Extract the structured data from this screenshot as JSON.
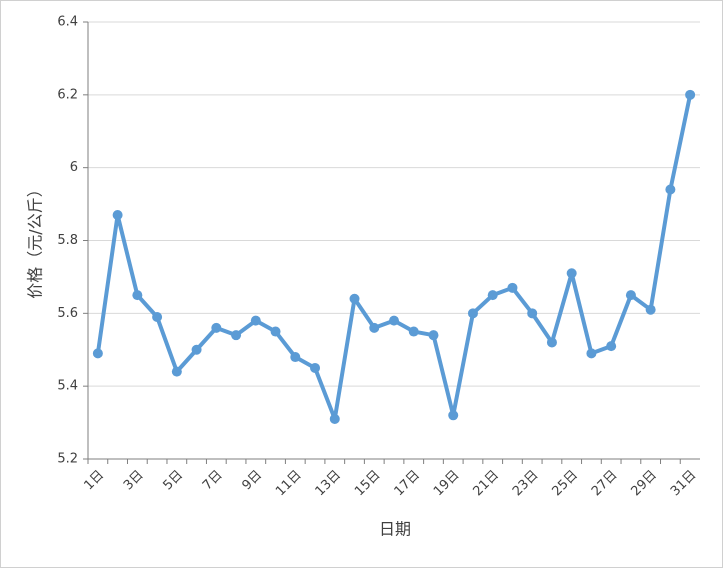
{
  "chart_data": {
    "type": "line",
    "x_label": "日期",
    "y_label": "价格（元/公斤）",
    "categories": [
      "1日",
      null,
      "3日",
      null,
      "5日",
      null,
      "7日",
      null,
      "9日",
      null,
      "11日",
      null,
      "13日",
      null,
      "15日",
      null,
      "17日",
      null,
      "19日",
      null,
      "21日",
      null,
      "23日",
      null,
      "25日",
      null,
      "27日",
      null,
      "29日",
      null,
      "31日"
    ],
    "series": [
      {
        "name": "价格",
        "color": "#5b9bd5",
        "values": [
          5.49,
          5.87,
          5.65,
          5.59,
          5.44,
          5.5,
          5.56,
          5.54,
          5.58,
          5.55,
          5.48,
          5.45,
          5.31,
          5.64,
          5.56,
          5.58,
          5.55,
          5.54,
          5.32,
          5.6,
          5.65,
          5.67,
          5.6,
          5.52,
          5.71,
          5.49,
          5.51,
          5.65,
          5.61,
          5.94,
          6.2
        ]
      }
    ],
    "ylim": [
      5.2,
      6.4
    ],
    "yticks": [
      5.2,
      5.4,
      5.6,
      5.8,
      6,
      6.2,
      6.4
    ],
    "grid": true
  }
}
